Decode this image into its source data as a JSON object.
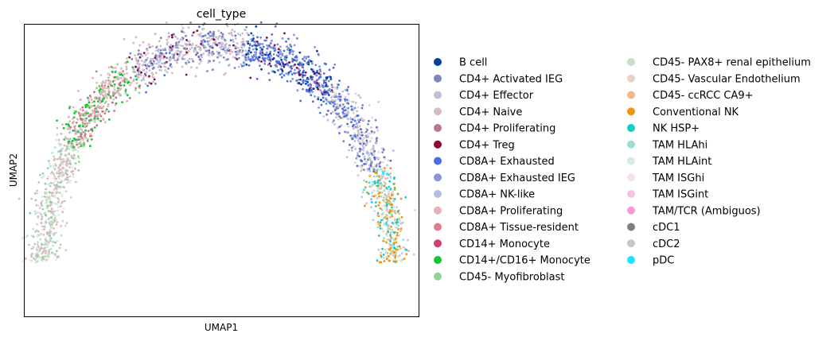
{
  "chart_data": {
    "type": "scatter",
    "title": "cell_type",
    "xlabel": "UMAP1",
    "ylabel": "UMAP2",
    "xlim": [
      0,
      1
    ],
    "ylim": [
      0,
      1
    ],
    "grid": false,
    "x_ticks": [],
    "y_ticks": [],
    "legend_position": "right",
    "legend_columns": 2,
    "point_count_per_category_note": "",
    "categories": [
      {
        "name": "B cell",
        "color": "#023fa5"
      },
      {
        "name": "CD4+ Activated IEG",
        "color": "#7d87b9"
      },
      {
        "name": "CD4+ Effector",
        "color": "#bec1d4"
      },
      {
        "name": "CD4+ Naive",
        "color": "#d6bcc0"
      },
      {
        "name": "CD4+ Proliferating",
        "color": "#bb7784"
      },
      {
        "name": "CD4+ Treg",
        "color": "#8e063b"
      },
      {
        "name": "CD8A+ Exhausted",
        "color": "#4a6fe3"
      },
      {
        "name": "CD8A+ Exhausted IEG",
        "color": "#8595e1"
      },
      {
        "name": "CD8A+ NK-like",
        "color": "#b5bbe3"
      },
      {
        "name": "CD8A+ Proliferating",
        "color": "#e6afb9"
      },
      {
        "name": "CD8A+ Tissue-resident",
        "color": "#e07b91"
      },
      {
        "name": "CD14+ Monocyte",
        "color": "#d33f6a"
      },
      {
        "name": "CD14+/CD16+ Monocyte",
        "color": "#11c638"
      },
      {
        "name": "CD45- Myofibroblast",
        "color": "#8dd593"
      },
      {
        "name": "CD45- PAX8+ renal epithelium",
        "color": "#c6dec7"
      },
      {
        "name": "CD45- Vascular Endothelium",
        "color": "#ead3c6"
      },
      {
        "name": "CD45- ccRCC CA9+",
        "color": "#f0b98d"
      },
      {
        "name": "Conventional NK",
        "color": "#ef9708"
      },
      {
        "name": "NK HSP+",
        "color": "#0fcfc0"
      },
      {
        "name": "TAM HLAhi",
        "color": "#9cded6"
      },
      {
        "name": "TAM HLAint",
        "color": "#d5eae7"
      },
      {
        "name": "TAM ISGhi",
        "color": "#f3e1eb"
      },
      {
        "name": "TAM ISGint",
        "color": "#f6c4e1"
      },
      {
        "name": "TAM/TCR (Ambiguos)",
        "color": "#f79cd4"
      },
      {
        "name": "cDC1",
        "color": "#7f7f7f"
      },
      {
        "name": "cDC2",
        "color": "#c7c7c7"
      },
      {
        "name": "pDC",
        "color": "#1ce6ff"
      }
    ],
    "arc_shape": "upside-down U (arch) running from lower-left, over the top, to lower-right"
  }
}
